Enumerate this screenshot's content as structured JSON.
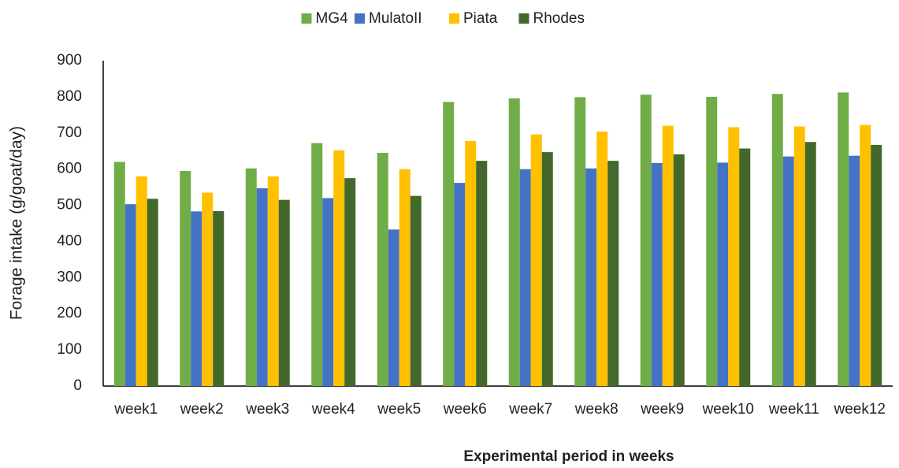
{
  "chart_data": {
    "type": "bar",
    "x_label": "Experimental  period in weeks",
    "y_label": "Forage intake (g/goat/day)",
    "categories": [
      "week1",
      "week2",
      "week3",
      "week4",
      "week5",
      "week6",
      "week7",
      "week8",
      "week9",
      "week10",
      "week11",
      "week12"
    ],
    "series": [
      {
        "name": "MG4",
        "color": "#70ad47",
        "values": [
          620,
          595,
          602,
          672,
          645,
          786,
          796,
          799,
          806,
          800,
          808,
          812
        ]
      },
      {
        "name": "MulatoII",
        "color": "#4472c4",
        "values": [
          503,
          483,
          547,
          520,
          433,
          562,
          600,
          602,
          617,
          618,
          635,
          637
        ]
      },
      {
        "name": "Piata",
        "color": "#ffc000",
        "values": [
          580,
          535,
          580,
          652,
          600,
          678,
          696,
          704,
          720,
          716,
          718,
          722
        ]
      },
      {
        "name": "Rhodes",
        "color": "#43682b",
        "values": [
          518,
          484,
          515,
          575,
          526,
          623,
          647,
          623,
          641,
          657,
          675,
          667
        ]
      }
    ],
    "ylim": [
      0,
      900
    ],
    "yticks": [
      0,
      100,
      200,
      300,
      400,
      500,
      600,
      700,
      800,
      900
    ],
    "grid": false,
    "legend": "top"
  }
}
